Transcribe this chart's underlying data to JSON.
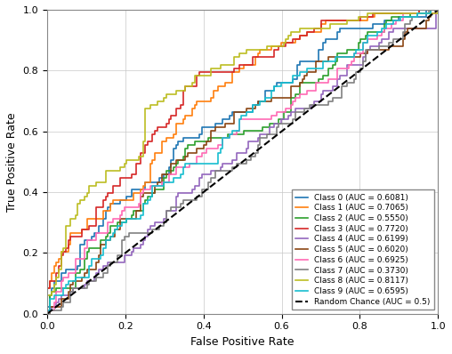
{
  "title": "",
  "xlabel": "False Positive Rate",
  "ylabel": "True Positive Rate",
  "classes": [
    {
      "label": "Class 0 (AUC = 0.6081)",
      "color": "#1f77b4",
      "auc": 0.6081,
      "seed": 101
    },
    {
      "label": "Class 1 (AUC = 0.7065)",
      "color": "#ff7f0e",
      "auc": 0.7065,
      "seed": 202
    },
    {
      "label": "Class 2 (AUC = 0.5550)",
      "color": "#2ca02c",
      "auc": 0.555,
      "seed": 303
    },
    {
      "label": "Class 3 (AUC = 0.7720)",
      "color": "#d62728",
      "auc": 0.772,
      "seed": 404
    },
    {
      "label": "Class 4 (AUC = 0.6199)",
      "color": "#9467bd",
      "auc": 0.6199,
      "seed": 505
    },
    {
      "label": "Class 5 (AUC = 0.6020)",
      "color": "#8b4513",
      "auc": 0.602,
      "seed": 606
    },
    {
      "label": "Class 6 (AUC = 0.6925)",
      "color": "#ff69b4",
      "auc": 0.6925,
      "seed": 707
    },
    {
      "label": "Class 7 (AUC = 0.3730)",
      "color": "#808080",
      "auc": 0.373,
      "seed": 808
    },
    {
      "label": "Class 8 (AUC = 0.8117)",
      "color": "#bcbd22",
      "auc": 0.8117,
      "seed": 909
    },
    {
      "label": "Class 9 (AUC = 0.6595)",
      "color": "#17becf",
      "auc": 0.6595,
      "seed": 1010
    }
  ],
  "random_label": "Random Chance (AUC = 0.5)",
  "random_color": "#000000",
  "background_color": "#ffffff",
  "grid_color": "#c8c8c8",
  "figsize": [
    5.08,
    3.98
  ],
  "dpi": 100,
  "legend_fontsize": 6.5,
  "axis_fontsize": 9,
  "tick_fontsize": 8,
  "linewidth": 1.2
}
